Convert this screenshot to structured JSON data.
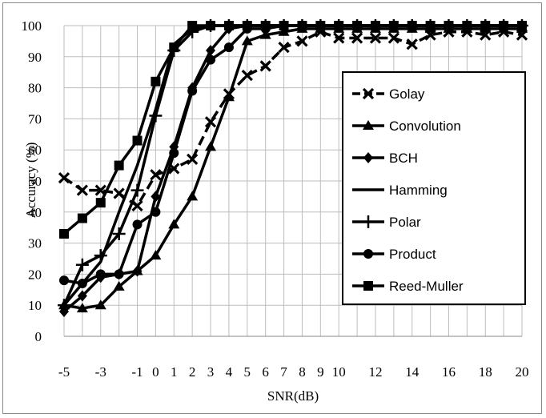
{
  "chart_data": {
    "type": "line",
    "title": "",
    "xlabel": "SNR(dB)",
    "ylabel": "Accuracy (%)",
    "xlim": [
      -5,
      20
    ],
    "ylim": [
      0,
      100
    ],
    "grid": true,
    "legend_position": "right",
    "x": [
      -5,
      -4,
      -3,
      -2,
      -1,
      0,
      1,
      2,
      3,
      4,
      5,
      6,
      7,
      8,
      9,
      10,
      11,
      12,
      13,
      14,
      15,
      16,
      17,
      18,
      19,
      20
    ],
    "x_tick_labels": [
      "-5",
      "-3",
      "-1",
      "0",
      "1",
      "2",
      "3",
      "4",
      "5",
      "6",
      "7",
      "8",
      "9",
      "10",
      "12",
      "14",
      "16",
      "18",
      "20"
    ],
    "y_ticks": [
      0,
      10,
      20,
      30,
      40,
      50,
      60,
      70,
      80,
      90,
      100
    ],
    "series": [
      {
        "name": "Golay",
        "marker": "x",
        "dash": true,
        "values": [
          51,
          47,
          47,
          46,
          42,
          52,
          54,
          57,
          69,
          78,
          84,
          87,
          93,
          95,
          98,
          96,
          96,
          96,
          96,
          94,
          97,
          98,
          98,
          97,
          98,
          97
        ]
      },
      {
        "name": "Convolution",
        "marker": "triangle",
        "dash": false,
        "values": [
          10,
          9,
          10,
          16,
          21,
          26,
          36,
          45,
          61,
          77,
          95,
          97,
          98,
          99,
          99,
          99,
          99,
          99,
          99,
          99,
          99,
          99,
          99,
          99,
          99,
          99
        ]
      },
      {
        "name": "BCH",
        "marker": "diamond",
        "dash": false,
        "values": [
          8,
          13,
          19,
          20,
          21,
          45,
          61,
          80,
          92,
          99,
          100,
          100,
          100,
          100,
          100,
          100,
          100,
          100,
          100,
          100,
          100,
          100,
          100,
          100,
          100,
          100
        ]
      },
      {
        "name": "Hamming",
        "marker": "none",
        "dash": false,
        "values": [
          10,
          17,
          24,
          40,
          55,
          73,
          94,
          99,
          100,
          100,
          100,
          100,
          100,
          100,
          100,
          100,
          100,
          100,
          100,
          100,
          100,
          100,
          100,
          100,
          100,
          100
        ]
      },
      {
        "name": "Polar",
        "marker": "plus",
        "dash": false,
        "values": [
          10,
          23,
          26,
          33,
          47,
          71,
          92,
          98,
          100,
          100,
          100,
          100,
          100,
          100,
          100,
          100,
          100,
          100,
          100,
          100,
          100,
          100,
          100,
          100,
          100,
          100
        ]
      },
      {
        "name": "Product",
        "marker": "circle",
        "dash": false,
        "values": [
          18,
          17,
          20,
          20,
          36,
          40,
          59,
          79,
          89,
          93,
          99,
          99,
          100,
          100,
          100,
          100,
          100,
          100,
          100,
          100,
          100,
          100,
          100,
          100,
          100,
          100
        ]
      },
      {
        "name": "Reed-Muller",
        "marker": "square",
        "dash": false,
        "values": [
          33,
          38,
          43,
          55,
          63,
          82,
          93,
          100,
          100,
          100,
          100,
          100,
          100,
          100,
          100,
          100,
          100,
          100,
          100,
          100,
          100,
          100,
          100,
          100,
          100,
          100
        ]
      }
    ]
  }
}
